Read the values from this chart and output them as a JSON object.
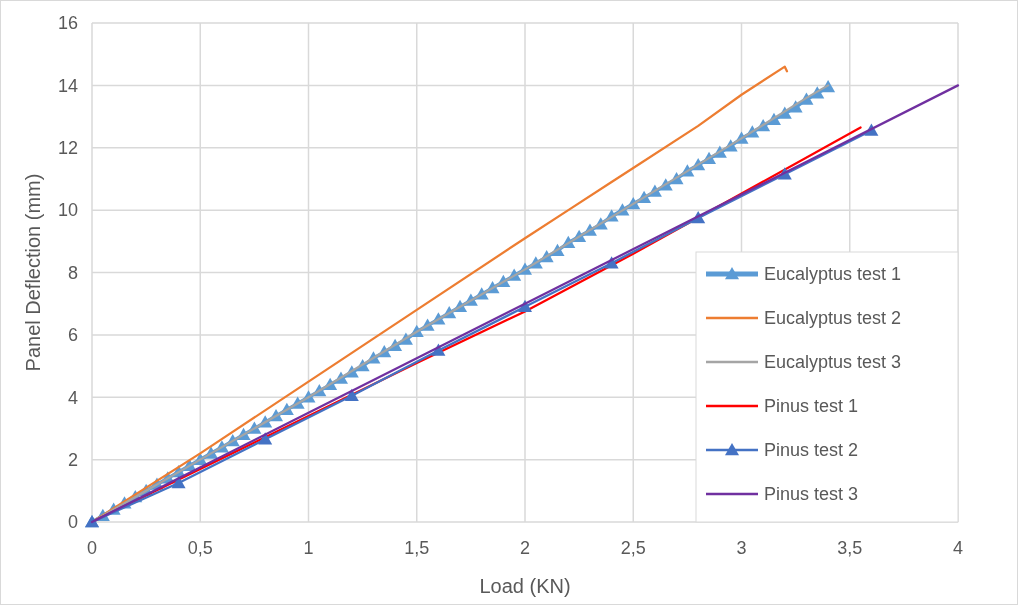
{
  "chart_data": {
    "type": "line",
    "xlabel": "Load (KN)",
    "ylabel": "Panel Deflection (mm)",
    "xlim": [
      0,
      4
    ],
    "ylim": [
      0,
      16
    ],
    "xticks": [
      0,
      {
        "value": 0.5,
        "label": "0,5"
      },
      1,
      {
        "value": 1.5,
        "label": "1,5"
      },
      2,
      {
        "value": 2.5,
        "label": "2,5"
      },
      3,
      {
        "value": 3.5,
        "label": "3,5"
      },
      4
    ],
    "yticks": [
      0,
      2,
      4,
      6,
      8,
      10,
      12,
      14,
      16
    ],
    "grid": true,
    "legend": "bottom right",
    "line_style": "solid",
    "series": [
      {
        "name": "Eucalyptus test 1",
        "color": "#5b9bd5",
        "marker": "triangle",
        "x": [
          0,
          0.05,
          0.1,
          0.15,
          0.2,
          0.25,
          0.3,
          0.35,
          0.4,
          0.45,
          0.5,
          0.55,
          0.6,
          0.65,
          0.7,
          0.75,
          0.8,
          0.85,
          0.9,
          0.95,
          1,
          1.05,
          1.1,
          1.15,
          1.2,
          1.25,
          1.3,
          1.35,
          1.4,
          1.45,
          1.5,
          1.55,
          1.6,
          1.65,
          1.7,
          1.75,
          1.8,
          1.85,
          1.9,
          1.95,
          2,
          2.05,
          2.1,
          2.15,
          2.2,
          2.25,
          2.3,
          2.35,
          2.4,
          2.45,
          2.5,
          2.55,
          2.6,
          2.65,
          2.7,
          2.75,
          2.8,
          2.85,
          2.9,
          2.95,
          3,
          3.05,
          3.1,
          3.15,
          3.2,
          3.25,
          3.3,
          3.35,
          3.4
        ],
        "values": [
          0,
          0.2,
          0.4,
          0.6,
          0.8,
          1.0,
          1.2,
          1.4,
          1.6,
          1.8,
          2.0,
          2.2,
          2.4,
          2.6,
          2.8,
          3.0,
          3.2,
          3.4,
          3.6,
          3.8,
          4.0,
          4.2,
          4.4,
          4.6,
          4.8,
          5.0,
          5.25,
          5.45,
          5.65,
          5.85,
          6.1,
          6.3,
          6.5,
          6.7,
          6.9,
          7.1,
          7.3,
          7.5,
          7.7,
          7.9,
          8.1,
          8.3,
          8.5,
          8.7,
          8.95,
          9.15,
          9.35,
          9.55,
          9.8,
          10.0,
          10.2,
          10.4,
          10.6,
          10.8,
          11.0,
          11.25,
          11.45,
          11.65,
          11.85,
          12.05,
          12.3,
          12.5,
          12.7,
          12.9,
          13.1,
          13.3,
          13.55,
          13.75,
          13.95
        ]
      },
      {
        "name": "Eucalyptus test 2",
        "color": "#ed7d31",
        "marker": "none",
        "x": [
          0,
          0.5,
          1,
          1.5,
          2,
          2.2,
          2.4,
          2.5,
          2.8,
          3,
          3.2,
          3.21
        ],
        "values": [
          0,
          2.2,
          4.5,
          6.8,
          9.1,
          10.0,
          10.9,
          11.35,
          12.7,
          13.7,
          14.6,
          14.45
        ]
      },
      {
        "name": "Eucalyptus test 3",
        "color": "#a5a5a5",
        "marker": "none",
        "x": [
          0,
          0.5,
          1,
          1.5,
          2,
          2.5,
          3,
          3.3,
          3.4
        ],
        "values": [
          0,
          2.0,
          4.0,
          6.1,
          8.1,
          10.2,
          12.3,
          13.6,
          14.0
        ]
      },
      {
        "name": "Pinus test 1",
        "color": "#ff0000",
        "marker": "none",
        "x": [
          0,
          0.5,
          1,
          1.5,
          2,
          2.5,
          3.55
        ],
        "values": [
          0,
          1.7,
          3.4,
          5.1,
          6.75,
          8.6,
          12.65
        ]
      },
      {
        "name": "Pinus test 2",
        "color": "#4472c4",
        "marker": "triangle",
        "x": [
          0,
          0.4,
          0.8,
          1.2,
          1.6,
          2,
          2.4,
          2.8,
          3.2,
          3.6
        ],
        "values": [
          0,
          1.25,
          2.65,
          4.05,
          5.5,
          6.9,
          8.3,
          9.75,
          11.15,
          12.55
        ]
      },
      {
        "name": "Pinus test 3",
        "color": "#7030a0",
        "marker": "none",
        "x": [
          0,
          1,
          2,
          3,
          4
        ],
        "values": [
          0,
          3.5,
          7.0,
          10.5,
          14.0
        ]
      }
    ]
  }
}
